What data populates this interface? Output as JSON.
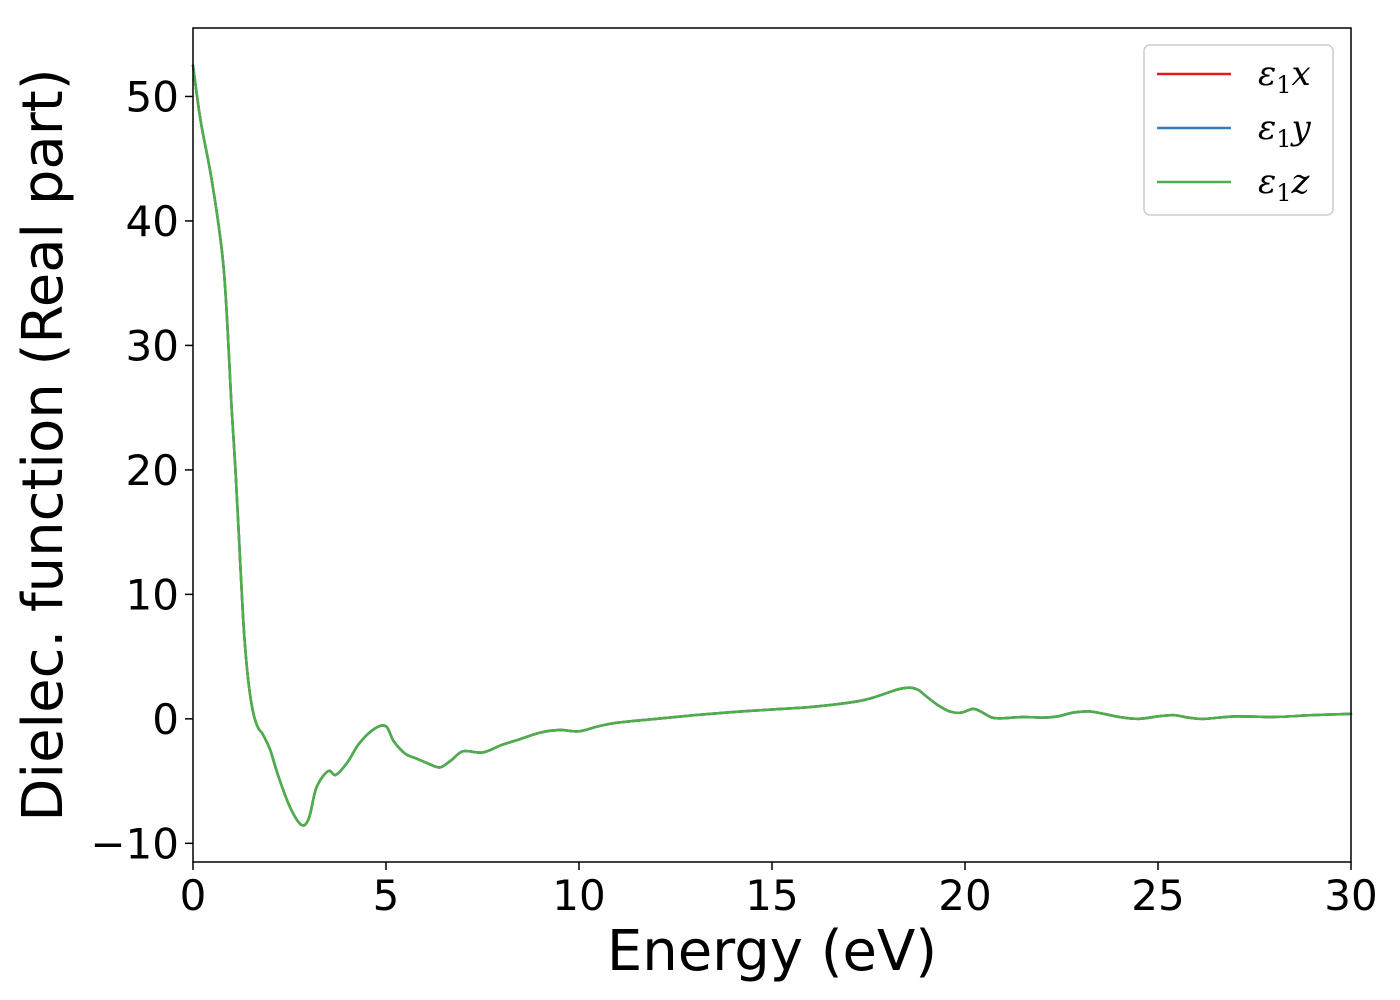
{
  "chart_data": {
    "type": "line",
    "title": "",
    "xlabel": "Energy (eV)",
    "ylabel": "Dielec. function (Real part)",
    "xlim": [
      0,
      30
    ],
    "ylim": [
      -11.5,
      55.5
    ],
    "xticks": [
      0,
      5,
      10,
      15,
      20,
      25,
      30
    ],
    "yticks": [
      -10,
      0,
      10,
      20,
      30,
      40,
      50
    ],
    "ytick_labels": [
      "−10",
      "0",
      "10",
      "20",
      "30",
      "40",
      "50"
    ],
    "grid": false,
    "legend_position": "top-right",
    "x": [
      0,
      0.2,
      0.5,
      0.8,
      1.0,
      1.1,
      1.2,
      1.3,
      1.4,
      1.5,
      1.6,
      1.7,
      1.8,
      2.0,
      2.2,
      2.5,
      2.8,
      3.0,
      3.2,
      3.5,
      3.7,
      4.0,
      4.3,
      4.7,
      5.0,
      5.2,
      5.5,
      5.8,
      6.1,
      6.4,
      6.7,
      7.0,
      7.5,
      8.0,
      8.5,
      9.0,
      9.5,
      10.0,
      10.5,
      11.0,
      12.0,
      13.0,
      14.0,
      15.0,
      16.0,
      17.0,
      17.5,
      18.0,
      18.3,
      18.6,
      18.8,
      19.0,
      19.3,
      19.6,
      19.9,
      20.2,
      20.4,
      20.7,
      21.0,
      21.5,
      22.0,
      22.4,
      22.8,
      23.2,
      23.6,
      24.0,
      24.5,
      25.0,
      25.4,
      25.8,
      26.2,
      27.0,
      28.0,
      29.0,
      30.0
    ],
    "series": [
      {
        "name": "ε₁x",
        "label": "ε₁x",
        "label_base": "ε",
        "label_sub": "1",
        "label_var": "x",
        "color": "#e41a1c",
        "values": [
          52.5,
          48,
          43,
          36,
          25,
          20,
          14,
          8,
          4,
          1.5,
          0,
          -0.8,
          -1.2,
          -2.5,
          -4.5,
          -7,
          -8.5,
          -8.0,
          -5.5,
          -4.2,
          -4.5,
          -3.5,
          -2.0,
          -0.8,
          -0.6,
          -1.8,
          -2.8,
          -3.2,
          -3.6,
          -3.9,
          -3.3,
          -2.6,
          -2.7,
          -2.1,
          -1.6,
          -1.1,
          -0.9,
          -1.0,
          -0.6,
          -0.3,
          0.0,
          0.3,
          0.55,
          0.75,
          0.95,
          1.3,
          1.6,
          2.1,
          2.4,
          2.5,
          2.3,
          1.8,
          1.1,
          0.6,
          0.5,
          0.8,
          0.6,
          0.1,
          0.05,
          0.15,
          0.1,
          0.2,
          0.5,
          0.6,
          0.4,
          0.15,
          0.0,
          0.2,
          0.3,
          0.1,
          0.0,
          0.2,
          0.15,
          0.3,
          0.4
        ]
      },
      {
        "name": "ε₁y",
        "label": "ε₁y",
        "label_base": "ε",
        "label_sub": "1",
        "label_var": "y",
        "color": "#377eb8",
        "values": [
          52.5,
          48,
          43,
          36,
          25,
          20,
          14,
          8,
          4,
          1.5,
          0,
          -0.8,
          -1.2,
          -2.5,
          -4.5,
          -7,
          -8.5,
          -8.0,
          -5.5,
          -4.2,
          -4.5,
          -3.5,
          -2.0,
          -0.8,
          -0.6,
          -1.8,
          -2.8,
          -3.2,
          -3.6,
          -3.9,
          -3.3,
          -2.6,
          -2.7,
          -2.1,
          -1.6,
          -1.1,
          -0.9,
          -1.0,
          -0.6,
          -0.3,
          0.0,
          0.3,
          0.55,
          0.75,
          0.95,
          1.3,
          1.6,
          2.1,
          2.4,
          2.5,
          2.3,
          1.8,
          1.1,
          0.6,
          0.5,
          0.8,
          0.6,
          0.1,
          0.05,
          0.15,
          0.1,
          0.2,
          0.5,
          0.6,
          0.4,
          0.15,
          0.0,
          0.2,
          0.3,
          0.1,
          0.0,
          0.2,
          0.15,
          0.3,
          0.4
        ]
      },
      {
        "name": "ε₁z",
        "label": "ε₁z",
        "label_base": "ε",
        "label_sub": "1",
        "label_var": "z",
        "color": "#4daf4a",
        "values": [
          52.5,
          48,
          43,
          36,
          25,
          20,
          14,
          8,
          4,
          1.5,
          0,
          -0.8,
          -1.2,
          -2.5,
          -4.5,
          -7,
          -8.5,
          -8.0,
          -5.5,
          -4.2,
          -4.5,
          -3.5,
          -2.0,
          -0.8,
          -0.6,
          -1.8,
          -2.8,
          -3.2,
          -3.6,
          -3.9,
          -3.3,
          -2.6,
          -2.7,
          -2.1,
          -1.6,
          -1.1,
          -0.9,
          -1.0,
          -0.6,
          -0.3,
          0.0,
          0.3,
          0.55,
          0.75,
          0.95,
          1.3,
          1.6,
          2.1,
          2.4,
          2.5,
          2.3,
          1.8,
          1.1,
          0.6,
          0.5,
          0.8,
          0.6,
          0.1,
          0.05,
          0.15,
          0.1,
          0.2,
          0.5,
          0.6,
          0.4,
          0.15,
          0.0,
          0.2,
          0.3,
          0.1,
          0.0,
          0.2,
          0.15,
          0.3,
          0.4
        ]
      }
    ]
  }
}
